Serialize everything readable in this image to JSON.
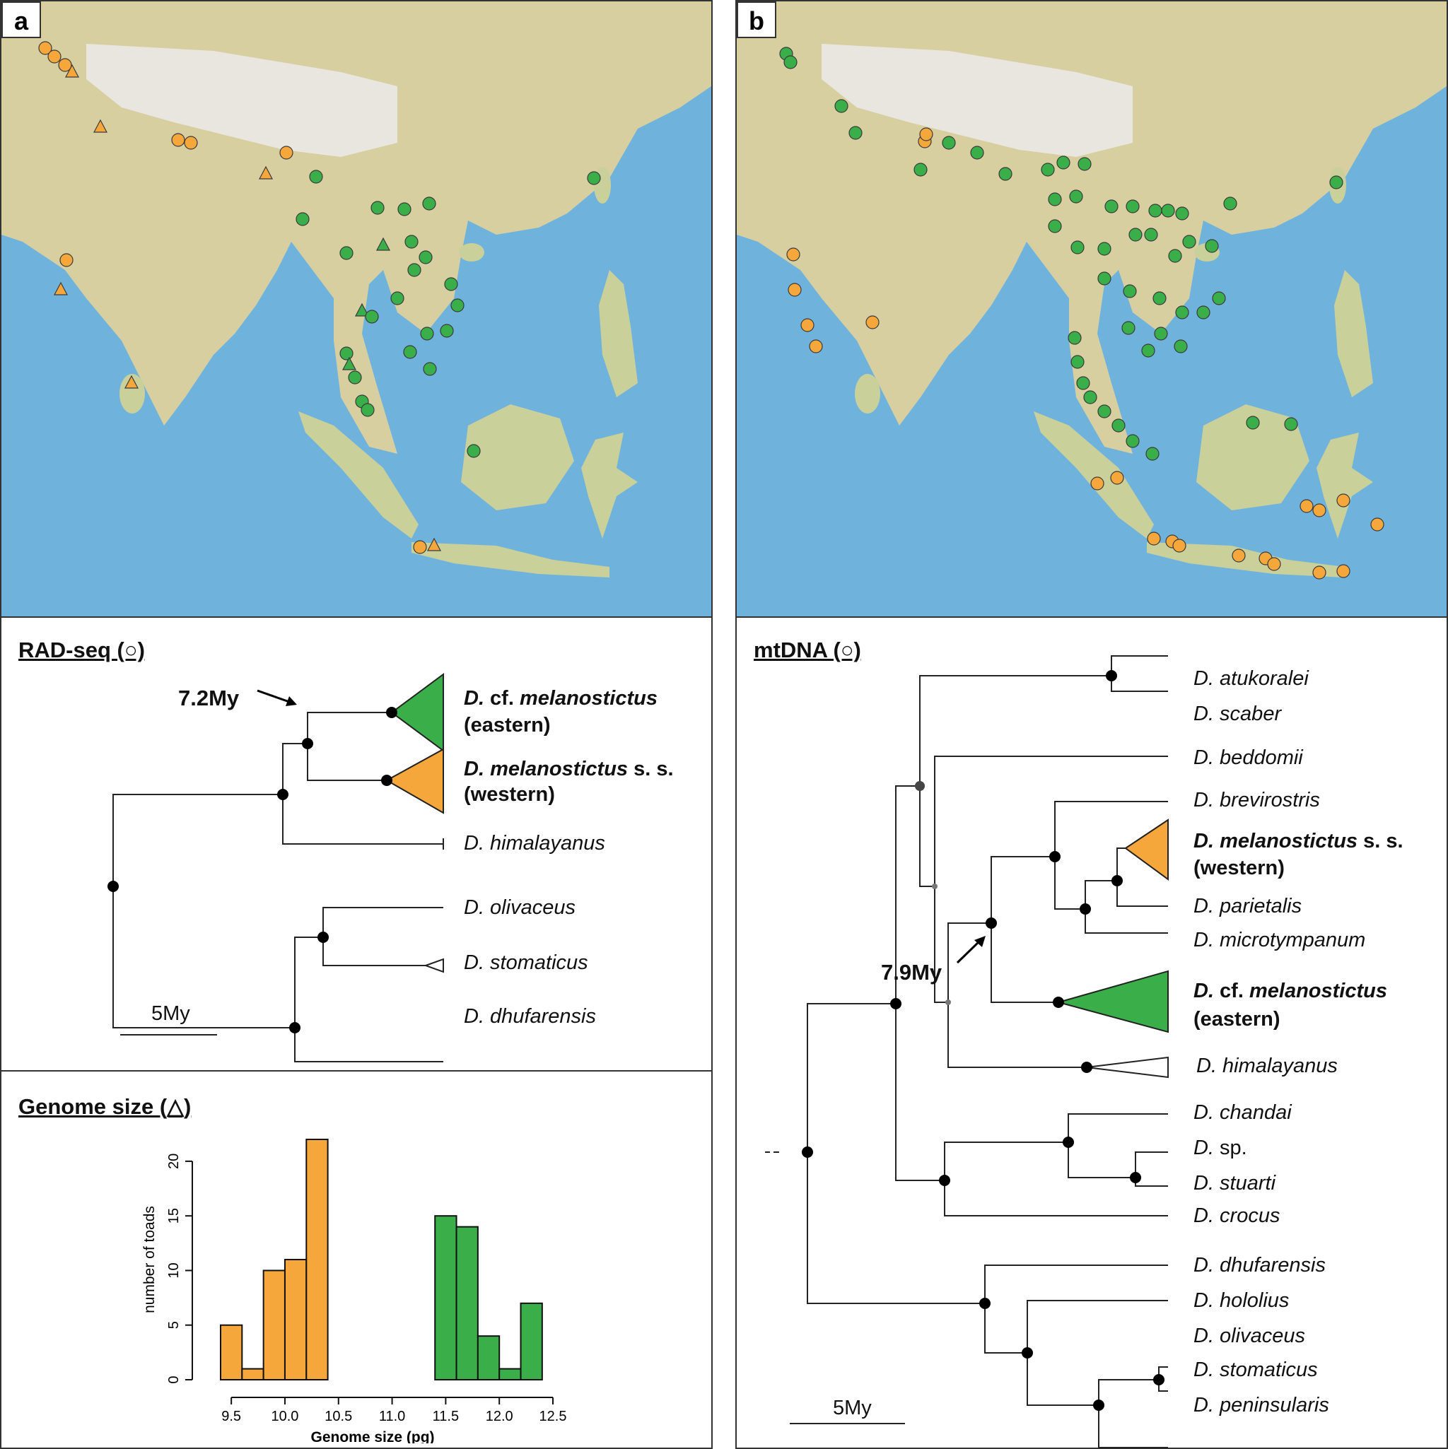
{
  "panels": {
    "a_letter": "a",
    "b_letter": "b"
  },
  "rad_tree": {
    "title": "RAD-seq (○)",
    "node_age": "7.2My",
    "scale": "5My",
    "taxa": {
      "eastern_genus": "D.",
      "eastern_mid": " cf. ",
      "eastern_species": "melanostictus",
      "eastern_note": "(eastern)",
      "western_genus": "D.",
      "western_species": "melanostictus",
      "western_tail": " s. s.",
      "western_note": "(western)",
      "himalayanus": "D. himalayanus",
      "olivaceus": "D. olivaceus",
      "stomaticus": "D. stomaticus",
      "dhufarensis": "D. dhufarensis"
    }
  },
  "genome": {
    "title": "Genome size (△)"
  },
  "mt_tree": {
    "title": "mtDNA (○)",
    "node_age": "7.9My",
    "scale": "5My",
    "taxa": {
      "atukoralei": "D. atukoralei",
      "scaber": "D. scaber",
      "beddomii": "D. beddomii",
      "brevirostris": "D. brevirostris",
      "western_genus": "D.",
      "western_species": "melanostictus",
      "western_tail": " s. s.",
      "western_note": "(western)",
      "parietalis": "D. parietalis",
      "microtympanum": "D. microtympanum",
      "eastern_genus": "D.",
      "eastern_mid": " cf. ",
      "eastern_species": "melanostictus",
      "eastern_note": "(eastern)",
      "himalayanus": "D. himalayanus",
      "chandai": "D. chandai",
      "sp_genus": "D.",
      "sp_tail": " sp.",
      "stuarti": "D. stuarti",
      "crocus": "D. crocus",
      "dhufarensis": "D. dhufarensis",
      "hololius": "D. hololius",
      "olivaceus": "D. olivaceus",
      "stomaticus": "D. stomaticus",
      "peninsularis": "D. peninsularis"
    }
  },
  "colors": {
    "western": "#f5a73b",
    "eastern": "#3aae49",
    "sea": "#6fb3dc",
    "land": "#d9d2a6"
  },
  "chart_data": {
    "type": "bar",
    "title": "",
    "xlabel": "Genome size (pg)",
    "ylabel": "number of toads",
    "xlim": [
      9.4,
      12.5
    ],
    "ylim": [
      0,
      22
    ],
    "x_ticks": [
      "9.5",
      "10.0",
      "10.5",
      "11.0",
      "11.5",
      "12.0",
      "12.5"
    ],
    "y_ticks": [
      "0",
      "5",
      "10",
      "15",
      "20"
    ],
    "bin_width": 0.1,
    "series": [
      {
        "color": "#f5a73b",
        "bin_starts": [
          9.4,
          9.5,
          9.6,
          9.7,
          9.8,
          9.9,
          10.0,
          10.1,
          10.2,
          10.3
        ],
        "values": [
          5,
          5,
          1,
          10,
          10,
          11,
          11,
          22,
          22,
          0
        ]
      },
      {
        "color": "#3aae49",
        "bin_starts": [
          11.4,
          11.5,
          11.6,
          11.7,
          11.8,
          11.9,
          12.0,
          12.1,
          12.2,
          12.3
        ],
        "values": [
          15,
          15,
          14,
          4,
          4,
          1,
          1,
          7,
          7,
          0
        ]
      }
    ]
  }
}
